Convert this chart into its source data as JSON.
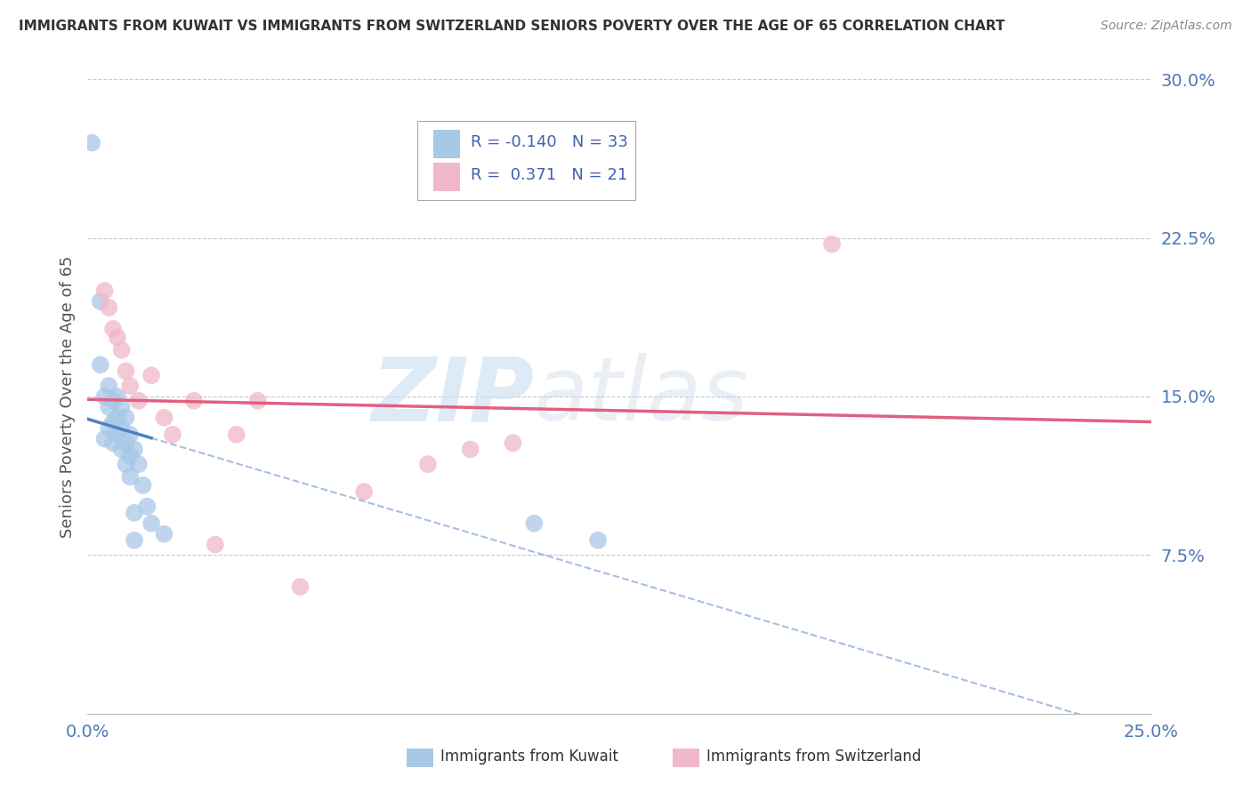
{
  "title": "IMMIGRANTS FROM KUWAIT VS IMMIGRANTS FROM SWITZERLAND SENIORS POVERTY OVER THE AGE OF 65 CORRELATION CHART",
  "source": "Source: ZipAtlas.com",
  "ylabel": "Seniors Poverty Over the Age of 65",
  "xlim": [
    0.0,
    0.25
  ],
  "ylim": [
    0.0,
    0.3
  ],
  "kuwait_R": -0.14,
  "kuwait_N": 33,
  "swiss_R": 0.371,
  "swiss_N": 21,
  "background_color": "#ffffff",
  "grid_color": "#c8c8c8",
  "kuwait_color": "#a8c8e8",
  "swiss_color": "#f0b8c8",
  "kuwait_line_color": "#5080c0",
  "swiss_line_color": "#e06080",
  "kuwait_scatter_x": [
    0.001,
    0.003,
    0.003,
    0.004,
    0.004,
    0.005,
    0.005,
    0.005,
    0.006,
    0.006,
    0.006,
    0.007,
    0.007,
    0.007,
    0.008,
    0.008,
    0.008,
    0.009,
    0.009,
    0.009,
    0.01,
    0.01,
    0.01,
    0.011,
    0.011,
    0.011,
    0.012,
    0.013,
    0.014,
    0.015,
    0.018,
    0.105,
    0.12
  ],
  "kuwait_scatter_y": [
    0.27,
    0.195,
    0.165,
    0.15,
    0.13,
    0.155,
    0.145,
    0.135,
    0.148,
    0.138,
    0.128,
    0.15,
    0.14,
    0.132,
    0.145,
    0.135,
    0.125,
    0.14,
    0.128,
    0.118,
    0.132,
    0.122,
    0.112,
    0.125,
    0.095,
    0.082,
    0.118,
    0.108,
    0.098,
    0.09,
    0.085,
    0.09,
    0.082
  ],
  "swiss_scatter_x": [
    0.004,
    0.005,
    0.006,
    0.007,
    0.008,
    0.009,
    0.01,
    0.012,
    0.015,
    0.018,
    0.02,
    0.025,
    0.03,
    0.035,
    0.04,
    0.05,
    0.065,
    0.08,
    0.09,
    0.1,
    0.175
  ],
  "swiss_scatter_y": [
    0.2,
    0.192,
    0.182,
    0.178,
    0.172,
    0.162,
    0.155,
    0.148,
    0.16,
    0.14,
    0.132,
    0.148,
    0.08,
    0.132,
    0.148,
    0.06,
    0.105,
    0.118,
    0.125,
    0.128,
    0.222
  ],
  "ytick_positions": [
    0.075,
    0.15,
    0.225,
    0.3
  ],
  "ytick_labels": [
    "7.5%",
    "15.0%",
    "22.5%",
    "30.0%"
  ],
  "xtick_positions": [
    0.0,
    0.25
  ],
  "xtick_labels": [
    "0.0%",
    "25.0%"
  ]
}
